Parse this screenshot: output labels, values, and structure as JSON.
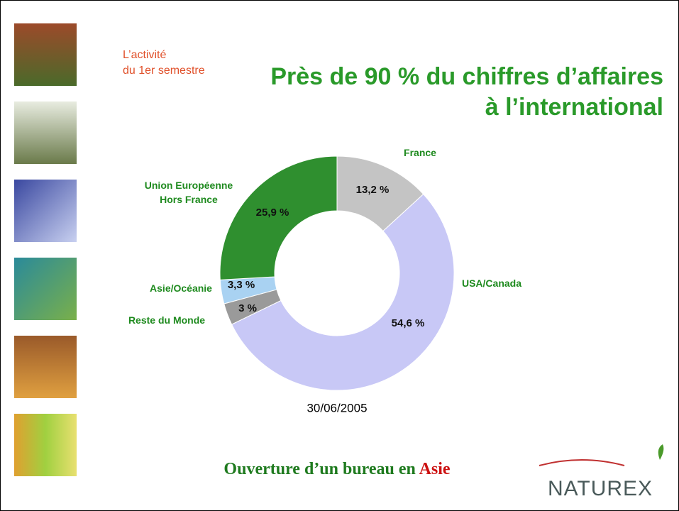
{
  "chart_data": {
    "type": "donut",
    "title": "Près de 90 % du chiffres d’affaires\nà l’international",
    "subtitle": "L’activité\ndu 1er semestre",
    "categories": [
      "France",
      "USA/Canada",
      "Reste du Monde",
      "Asie/Océanie",
      "Union Européenne\nHors France"
    ],
    "values": [
      13.2,
      54.6,
      3,
      3.3,
      25.9
    ],
    "value_labels": [
      "13,2 %",
      "54,6 %",
      "3 %",
      "3,3 %",
      "25,9 %"
    ],
    "colors": [
      "#c4c4c4",
      "#c8c8f6",
      "#9a9a9a",
      "#a9d2f2",
      "#2f8f2f"
    ],
    "caption": "30/06/2005"
  },
  "footer": {
    "parts": [
      "Ouverture d’un bureau en ",
      "Asie"
    ]
  },
  "logo": "NATUREX"
}
